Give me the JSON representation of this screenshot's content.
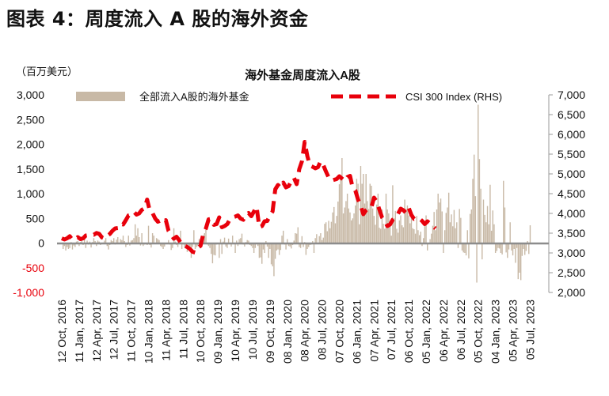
{
  "figure_title": "图表 4：周度流入 A 股的海外资金",
  "chart_data": {
    "type": "bar",
    "title": "海外基金周度流入A股",
    "left_unit": "（百万美元）",
    "ylim_left": [
      -1000,
      3000
    ],
    "left_ticks": [
      "3,000",
      "2,500",
      "2,000",
      "1,500",
      "1,000",
      "500",
      "0",
      "-500",
      "-1,000"
    ],
    "ylim_right": [
      2000,
      7000
    ],
    "right_ticks": [
      "7,000",
      "6,500",
      "6,000",
      "5,500",
      "5,000",
      "4,500",
      "4,000",
      "3,500",
      "3,000",
      "2,500",
      "2,000"
    ],
    "x_ticks": [
      "12 Oct, 2016",
      "11 Jan, 2017",
      "12 Apr, 2017",
      "12 Jul, 2017",
      "11 Oct, 2017",
      "10 Jan, 2018",
      "11 Apr, 2018",
      "11 Jul, 2018",
      "10 Oct, 2018",
      "09 Jan, 2019",
      "10 Apr, 2019",
      "10 Jul, 2019",
      "09 Oct, 2019",
      "08 Jan, 2020",
      "08 Apr, 2020",
      "08 Jul, 2020",
      "07 Oct, 2020",
      "06 Jan, 2021",
      "07 Apr, 2021",
      "07 Jul, 2021",
      "06 Oct, 2021",
      "05 Jan, 2022",
      "06 Apr, 2022",
      "06 Jul, 2022",
      "05 Oct, 2022",
      "04 Jan, 2023",
      "05 Apr, 2023",
      "05 Jul, 2023"
    ],
    "series": [
      {
        "name": "全部流入A股的海外基金",
        "type": "bar",
        "color": "#c8b9a6",
        "axis": "left"
      },
      {
        "name": "CSI 300 Index (RHS)",
        "type": "line",
        "color": "#e8000b",
        "style": "dashed",
        "axis": "right"
      }
    ],
    "bar_start": "2016-10-12",
    "bar_interval_days": 7,
    "bar_values": [
      0,
      -120,
      -60,
      -150,
      -80,
      -120,
      -100,
      20,
      -130,
      -50,
      -80,
      30,
      40,
      -60,
      20,
      60,
      -40,
      80,
      -100,
      50,
      -30,
      30,
      -90,
      20,
      100,
      40,
      -60,
      50,
      30,
      -40,
      -20,
      10,
      50,
      100,
      -60,
      -130,
      -40,
      60,
      40,
      100,
      -30,
      70,
      120,
      -20,
      80,
      60,
      150,
      40,
      -80,
      -40,
      150,
      -50,
      50,
      60,
      100,
      380,
      150,
      300,
      120,
      -50,
      200,
      -60,
      -30,
      -20,
      -40,
      350,
      -40,
      -90,
      200,
      150,
      -20,
      100,
      80,
      60,
      -60,
      -80,
      -120,
      -70,
      -20,
      -20,
      60,
      -30,
      -140,
      -100,
      300,
      30,
      -40,
      -80,
      60,
      250,
      -120,
      -30,
      -90,
      -50,
      -180,
      -60,
      -70,
      -300,
      -80,
      260,
      -120,
      -80,
      -60,
      80,
      40,
      130,
      160,
      200,
      270,
      -30,
      -60,
      -100,
      -220,
      -410,
      -240,
      -250,
      -30,
      0,
      -300,
      80,
      -220,
      30,
      110,
      -70,
      -100,
      90,
      -20,
      -70,
      150,
      -10,
      -200,
      50,
      -60,
      80,
      100,
      190,
      -30,
      -70,
      20,
      60,
      50,
      -40,
      -60,
      -100,
      -200,
      -100,
      -20,
      -60,
      -300,
      -290,
      -420,
      -130,
      -200,
      40,
      -70,
      -300,
      -120,
      -430,
      -470,
      -670,
      -320,
      -150,
      -130,
      -240,
      -140,
      150,
      250,
      -30,
      -130,
      80,
      -60,
      -70,
      -110,
      -40,
      50,
      200,
      190,
      320,
      -80,
      -100,
      140,
      -80,
      20,
      -240,
      -120,
      -80,
      -40,
      -30,
      40,
      -200,
      100,
      180,
      -20,
      140,
      200,
      60,
      110,
      390,
      420,
      240,
      450,
      300,
      430,
      620,
      730,
      400,
      550,
      840,
      1190,
      1310,
      1720,
      600,
      720,
      850,
      1000,
      700,
      620,
      460,
      500,
      600,
      760,
      1300,
      1200,
      380,
      1560,
      1200,
      1400,
      800,
      1400,
      850,
      690,
      1200,
      1160,
      700,
      550,
      370,
      780,
      1000,
      310,
      290,
      680,
      390,
      290,
      1000,
      680,
      600,
      400,
      150,
      1170,
      500,
      650,
      290,
      210,
      460,
      560,
      360,
      320,
      880,
      690,
      760,
      560,
      400,
      640,
      300,
      280,
      190,
      550,
      260,
      160,
      230,
      -60,
      100,
      350,
      560,
      -150,
      -10,
      80,
      190,
      350,
      630,
      260,
      680,
      1000,
      820,
      900,
      640,
      -200,
      260,
      610,
      720,
      1020,
      420,
      580,
      340,
      670,
      300,
      420,
      -100,
      690,
      510,
      -150,
      -190,
      -200,
      -250,
      260,
      -310,
      590,
      680,
      1300,
      1790,
      950,
      -800,
      2800,
      1700,
      1100,
      -330,
      880,
      570,
      420,
      750,
      380,
      1180,
      250,
      660,
      380,
      -200,
      -160,
      -100,
      -110,
      -200,
      -230,
      1260,
      720,
      -190,
      -300,
      -130,
      420,
      -150,
      -250,
      -120,
      -400,
      -100,
      -730,
      -600,
      -750,
      -260,
      -120,
      -240,
      -160,
      40,
      -220,
      360
    ],
    "line_start": "2016-10-12",
    "line_interval_days": 14,
    "line_values": [
      3370,
      3340,
      3370,
      3425,
      3330,
      3350,
      3400,
      3350,
      3370,
      3440,
      3450,
      3470,
      3460,
      3505,
      3485,
      3395,
      3365,
      3430,
      3480,
      3560,
      3620,
      3630,
      3740,
      3720,
      3830,
      3950,
      3970,
      4040,
      3970,
      4000,
      4090,
      4130,
      4350,
      4060,
      4010,
      3870,
      3790,
      3820,
      3770,
      3830,
      3560,
      3460,
      3360,
      3410,
      3320,
      3200,
      3180,
      3150,
      3100,
      3030,
      3010,
      3130,
      3180,
      3470,
      3620,
      3850,
      3860,
      3710,
      3730,
      3900,
      3650,
      3680,
      3730,
      3850,
      3900,
      3920,
      3950,
      3870,
      3840,
      3960,
      4010,
      3930,
      4050,
      4170,
      3650,
      3680,
      3800,
      3810,
      3950,
      4050,
      4610,
      4720,
      4650,
      4780,
      4660,
      4690,
      4820,
      4900,
      4740,
      5120,
      5320,
      5810,
      5450,
      5210,
      5180,
      5140,
      5170,
      5320,
      5220,
      5060,
      4910,
      4830,
      4850,
      4870,
      4940,
      4880,
      4820,
      4920,
      4950,
      4650,
      4580,
      4350,
      4200,
      3980,
      4080,
      4140,
      4150,
      4400,
      4300,
      4100,
      3900,
      3800,
      3680,
      3720,
      3840,
      3900,
      3990,
      4120,
      4080,
      4010,
      4140,
      3960,
      3860,
      3870,
      3870,
      3810,
      3730,
      3800,
      3740,
      3680,
      3620
    ]
  }
}
